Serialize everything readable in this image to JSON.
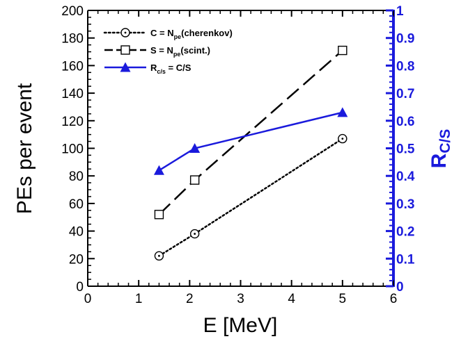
{
  "chart_data": {
    "type": "line",
    "xlabel": "E [MeV]",
    "ylabel": "PEs per event",
    "y2label": {
      "main": "R",
      "sub": "C/S"
    },
    "xlim": [
      0,
      6
    ],
    "ylim": [
      0,
      200
    ],
    "y2lim": [
      0,
      1
    ],
    "x_ticks": [
      "0",
      "1",
      "2",
      "3",
      "4",
      "5",
      "6"
    ],
    "y_ticks": [
      "0",
      "20",
      "40",
      "60",
      "80",
      "100",
      "120",
      "140",
      "160",
      "180",
      "200"
    ],
    "y2_ticks": [
      "0",
      "0.1",
      "0.2",
      "0.3",
      "0.4",
      "0.5",
      "0.6",
      "0.7",
      "0.8",
      "0.9",
      "1"
    ],
    "legend_position": "top-left",
    "series": [
      {
        "key": "cherenkov",
        "legend": {
          "pre": "C = N",
          "sub": "pe",
          "post": "(cherenkov)"
        },
        "axis": "left",
        "color": "#000000",
        "line_style": "dotted",
        "marker": "circle-dot",
        "x": [
          1.4,
          2.1,
          5.0
        ],
        "y": [
          22,
          38,
          107
        ]
      },
      {
        "key": "scint",
        "legend": {
          "pre": "S = N",
          "sub": "pe",
          "post": "(scint.)"
        },
        "axis": "left",
        "color": "#000000",
        "line_style": "dashed",
        "marker": "square-open",
        "x": [
          1.4,
          2.1,
          5.0
        ],
        "y": [
          52,
          77,
          171
        ]
      },
      {
        "key": "ratio",
        "legend": {
          "pre": "R",
          "sub": "c/s",
          "post": " = C/S"
        },
        "axis": "right",
        "color": "#1a1adc",
        "line_style": "solid",
        "marker": "triangle-filled",
        "x": [
          1.4,
          2.1,
          5.0
        ],
        "y": [
          0.42,
          0.5,
          0.63
        ]
      }
    ]
  }
}
